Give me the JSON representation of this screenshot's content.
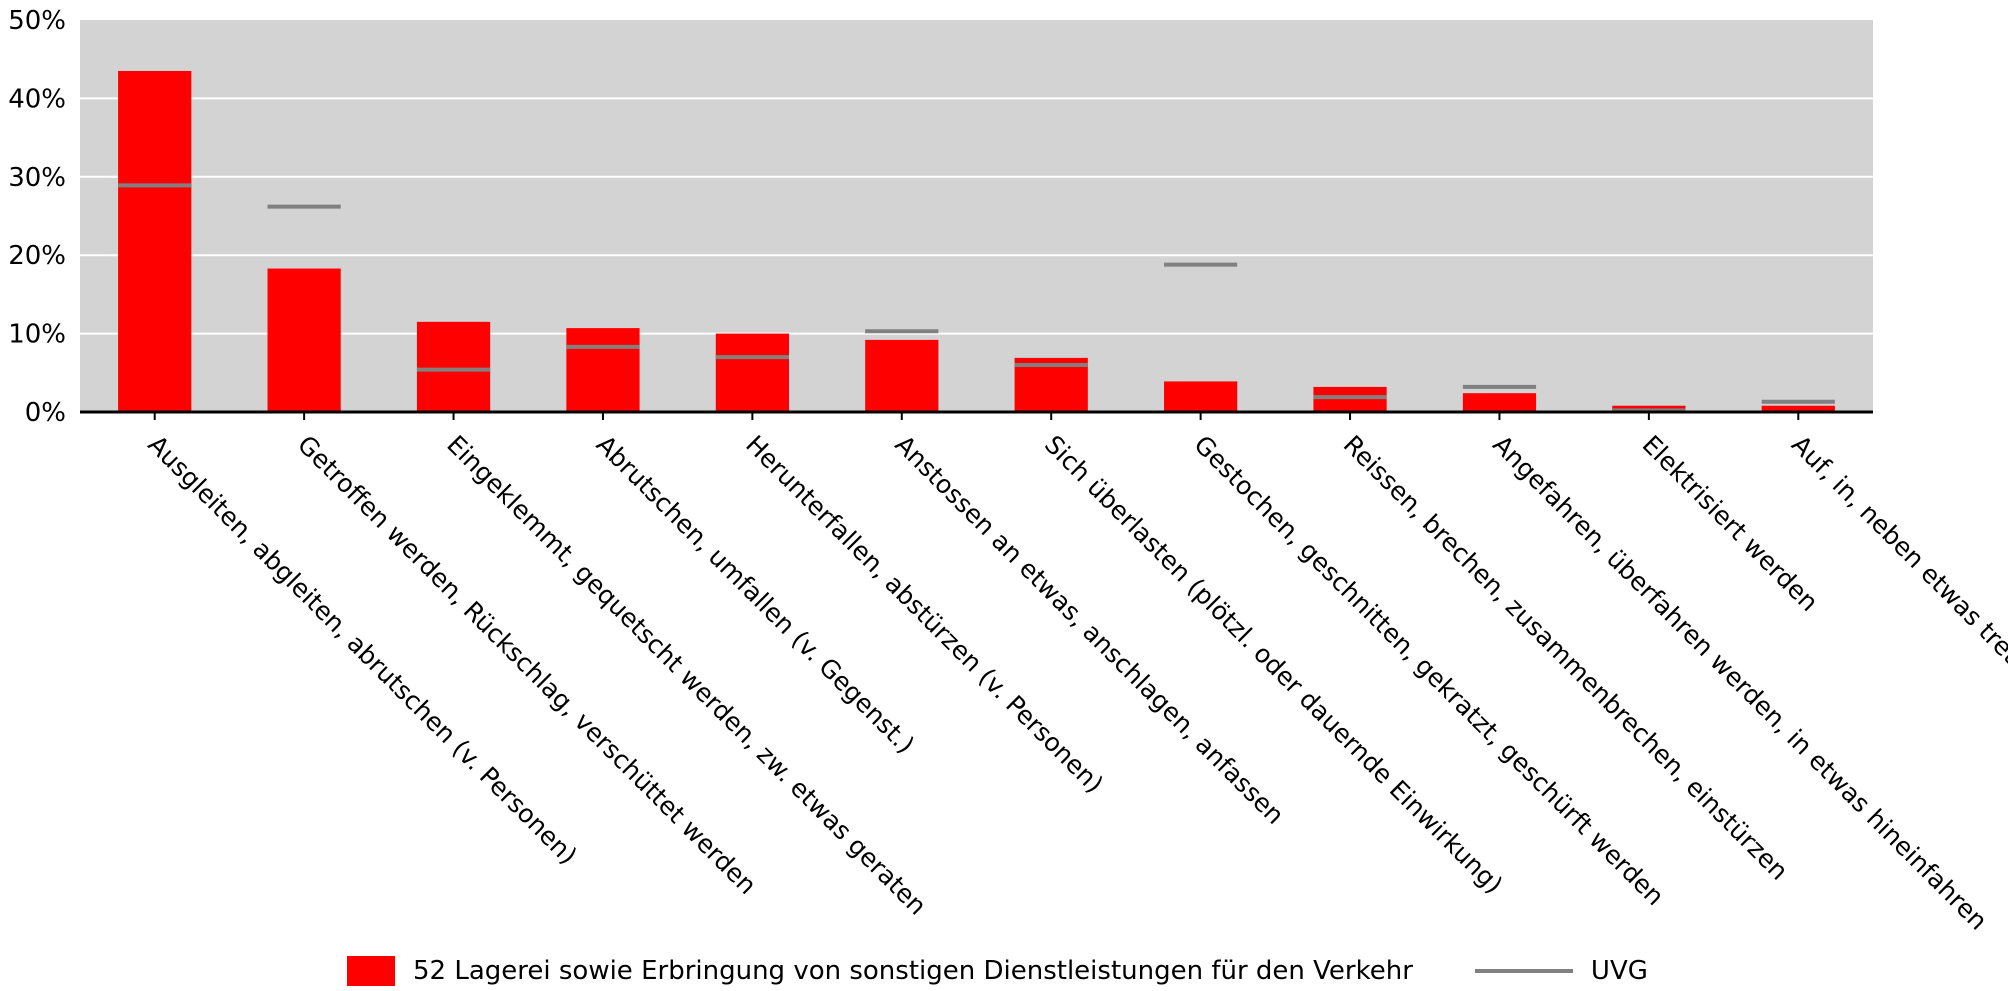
{
  "chart_data": {
    "type": "bar",
    "categories": [
      "Ausgleiten, abgleiten, abrutschen (v. Personen)",
      "Getroffen werden, Rückschlag, verschüttet werden",
      "Eingeklemmt, gequetscht werden, zw. etwas geraten",
      "Abrutschen, umfallen (v. Gegenst.)",
      "Herunterfallen, abstürzen (v. Personen)",
      "Anstossen an etwas, anschlagen, anfassen",
      "Sich überlasten (plötzl. oder dauernde Einwirkung)",
      "Gestochen, geschnitten, gekratzt, geschürft werden",
      "Reissen, brechen, zusammenbrechen, einstürzen",
      "Angefahren, überfahren werden, in etwas hineinfahren",
      "Elektrisiert werden",
      "Auf, in, neben etwas treten"
    ],
    "series": [
      {
        "name": "52 Lagerei sowie Erbringung von sonstigen Dienstleistungen für den Verkehr",
        "kind": "bar",
        "color": "#ff0000",
        "values": [
          43.5,
          18.3,
          11.5,
          10.7,
          10.0,
          9.2,
          6.9,
          3.9,
          3.2,
          2.4,
          0.8,
          0.8
        ]
      },
      {
        "name": "UVG",
        "kind": "marker-line",
        "color": "#808080",
        "values": [
          28.9,
          26.2,
          5.4,
          8.3,
          7.0,
          10.3,
          6.0,
          18.8,
          1.9,
          3.2,
          0.2,
          1.3
        ]
      }
    ],
    "ylim": [
      0,
      50
    ],
    "yticks": [
      "0%",
      "10%",
      "20%",
      "30%",
      "40%",
      "50%"
    ],
    "xlabel": "",
    "ylabel": "",
    "grid": true,
    "background": "#d3d3d3",
    "legend_position": "bottom"
  }
}
